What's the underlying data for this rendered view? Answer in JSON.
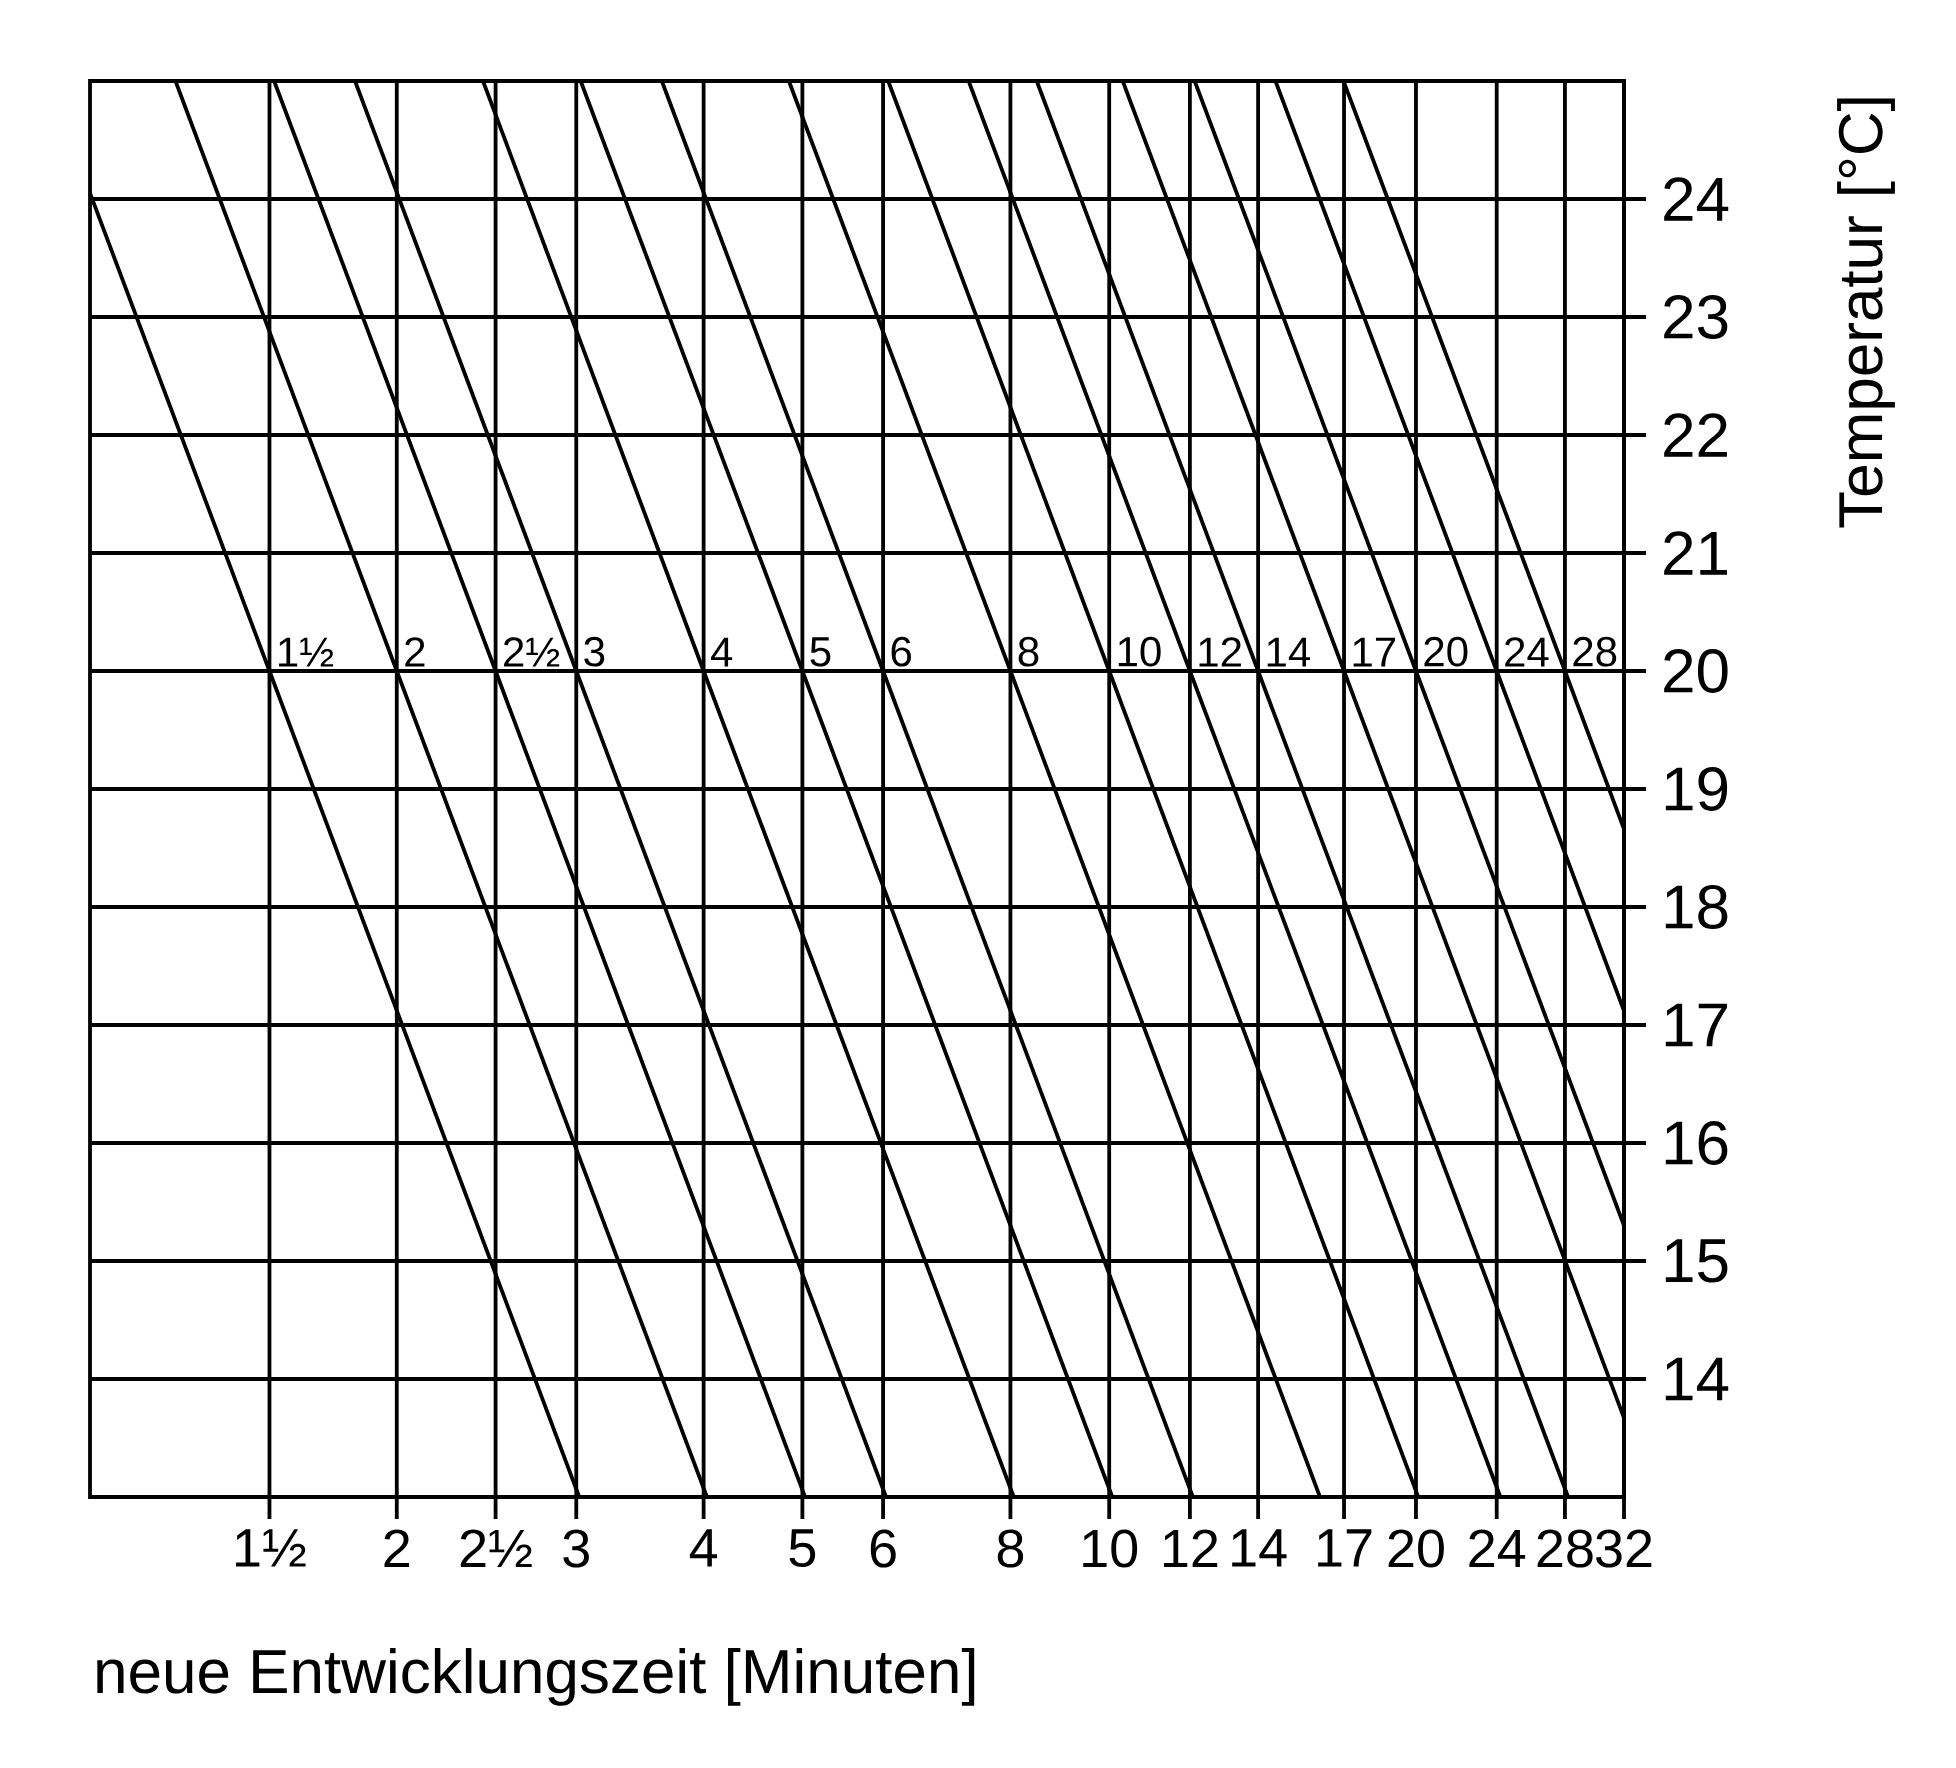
{
  "chart_data": {
    "type": "line",
    "xlabel": "neue Entwicklungszeit [Minuten]",
    "ylabel": "Temperatur [°C]",
    "log": "x",
    "grid": true,
    "xlim": [
      1,
      32
    ],
    "ylim": [
      13,
      25
    ],
    "xticks": [
      {
        "value": 1.5,
        "label": "1½"
      },
      2,
      {
        "value": 2.5,
        "label": "2½"
      },
      3,
      4,
      5,
      6,
      8,
      10,
      12,
      14,
      17,
      20,
      24,
      28,
      32
    ],
    "yticks": [
      14,
      15,
      16,
      17,
      18,
      19,
      20,
      21,
      22,
      23,
      24
    ],
    "series": [
      {
        "name": "1½",
        "color": "#000000",
        "x": [
          1,
          1.5,
          3.02
        ],
        "values": [
          24.05,
          20,
          13
        ]
      },
      {
        "name": "2",
        "color": "#000000",
        "x": [
          1.213,
          2,
          4.03
        ],
        "values": [
          25,
          20,
          13
        ]
      },
      {
        "name": "2½",
        "color": "#000000",
        "x": [
          1.516,
          2.5,
          5.03
        ],
        "values": [
          25,
          20,
          13
        ]
      },
      {
        "name": "3",
        "color": "#000000",
        "x": [
          1.82,
          3,
          6.04
        ],
        "values": [
          25,
          20,
          13
        ]
      },
      {
        "name": "4",
        "color": "#000000",
        "x": [
          2.43,
          4,
          8.06
        ],
        "values": [
          25,
          20,
          13
        ]
      },
      {
        "name": "5",
        "color": "#000000",
        "x": [
          3.03,
          5,
          10.07
        ],
        "values": [
          25,
          20,
          13
        ]
      },
      {
        "name": "6",
        "color": "#000000",
        "x": [
          3.64,
          6,
          12.08
        ],
        "values": [
          25,
          20,
          13
        ]
      },
      {
        "name": "8",
        "color": "#000000",
        "x": [
          4.85,
          8,
          16.1
        ],
        "values": [
          25,
          20,
          13
        ]
      },
      {
        "name": "10",
        "color": "#000000",
        "x": [
          6.07,
          10,
          20.1
        ],
        "values": [
          25,
          20,
          13
        ]
      },
      {
        "name": "12",
        "color": "#000000",
        "x": [
          7.28,
          12,
          24.2
        ],
        "values": [
          25,
          20,
          13
        ]
      },
      {
        "name": "14",
        "color": "#000000",
        "x": [
          8.49,
          14,
          28.2
        ],
        "values": [
          25,
          20,
          13
        ]
      },
      {
        "name": "17",
        "color": "#000000",
        "x": [
          10.31,
          17,
          32
        ],
        "values": [
          25,
          20,
          13.67
        ]
      },
      {
        "name": "20",
        "color": "#000000",
        "x": [
          12.13,
          20,
          32
        ],
        "values": [
          25,
          20,
          15.3
        ]
      },
      {
        "name": "24",
        "color": "#000000",
        "x": [
          14.56,
          24,
          32
        ],
        "values": [
          25,
          20,
          17.12
        ]
      },
      {
        "name": "28",
        "color": "#000000",
        "x": [
          16.98,
          28,
          32
        ],
        "values": [
          25,
          20,
          18.66
        ]
      }
    ]
  }
}
